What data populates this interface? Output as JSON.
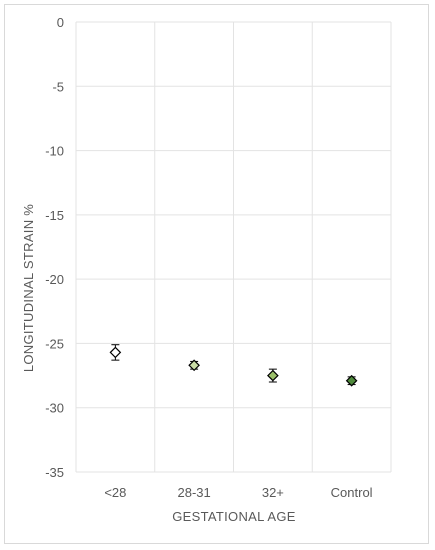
{
  "chart_data": {
    "type": "scatter",
    "xlabel": "GESTATIONAL AGE",
    "ylabel": "LONGITUDINAL STRAIN %",
    "categories": [
      "<28",
      "28-31",
      "32+",
      "Control"
    ],
    "ylim": [
      -35,
      0
    ],
    "yticks": [
      0,
      -5,
      -10,
      -15,
      -20,
      -25,
      -30,
      -35
    ],
    "grid": true,
    "points": [
      {
        "category": "<28",
        "value": -25.7,
        "error_low": -26.3,
        "error_high": -25.1,
        "fill": "#ffffff"
      },
      {
        "category": "28-31",
        "value": -26.7,
        "error_low": -27.0,
        "error_high": -26.4,
        "fill": "#c9dca6"
      },
      {
        "category": "32+",
        "value": -27.5,
        "error_low": -28.0,
        "error_high": -27.0,
        "fill": "#9bc06a"
      },
      {
        "category": "Control",
        "value": -27.9,
        "error_low": -28.2,
        "error_high": -27.6,
        "fill": "#4f8a3c"
      }
    ]
  }
}
